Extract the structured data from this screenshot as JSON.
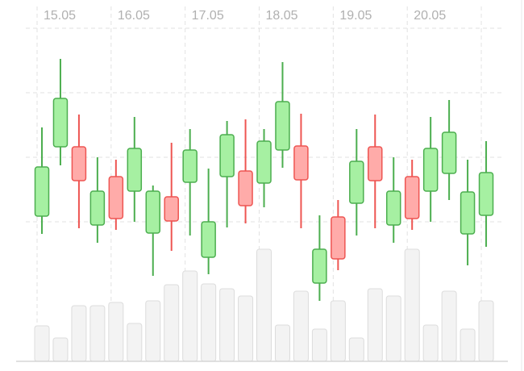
{
  "chart_data": {
    "type": "candlestick",
    "open": [
      192,
      278,
      278,
      181,
      241,
      223,
      171,
      216,
      234,
      141,
      241,
      248,
      233,
      274,
      279,
      109,
      191,
      208,
      278,
      181,
      241,
      223,
      245,
      170,
      193
    ],
    "close": [
      253,
      338,
      236,
      223,
      189,
      276,
      223,
      186,
      274,
      185,
      293,
      205,
      285,
      334,
      237,
      151,
      139,
      260,
      236,
      223,
      189,
      276,
      296,
      222,
      246
    ],
    "high": [
      302,
      387,
      318,
      265,
      262,
      315,
      230,
      283,
      300,
      251,
      310,
      312,
      300,
      383,
      319,
      193,
      212,
      300,
      318,
      265,
      262,
      315,
      336,
      262,
      285
    ],
    "low": [
      170,
      255,
      177,
      159,
      175,
      185,
      118,
      149,
      168,
      120,
      178,
      183,
      203,
      252,
      177,
      87,
      125,
      168,
      177,
      159,
      175,
      185,
      212,
      131,
      154
    ],
    "volume": [
      44,
      29,
      69,
      69,
      73,
      47,
      75,
      95,
      112,
      96,
      90,
      81,
      139,
      45,
      87,
      40,
      75,
      29,
      90,
      81,
      139,
      45,
      87,
      40,
      75
    ],
    "ylim": [
      0,
      460
    ],
    "volume_ylim": [
      0,
      448
    ],
    "ygrid": [
      425,
      345,
      265,
      185
    ],
    "xticks": [
      {
        "value": 0,
        "label": "15.05"
      },
      {
        "value": 4,
        "label": "16.05"
      },
      {
        "value": 8,
        "label": "17.05"
      },
      {
        "value": 12,
        "label": "18.05"
      },
      {
        "value": 16,
        "label": "19.05"
      },
      {
        "value": 20,
        "label": "20.05"
      },
      24
    ],
    "up_color": "#a6f0a2",
    "up_stroke": "#4cae4f",
    "down_color": "#ffaba9",
    "down_stroke": "#ee5552",
    "volume_color": "#f3f3f3",
    "volume_stroke": "#dcdcdc"
  }
}
